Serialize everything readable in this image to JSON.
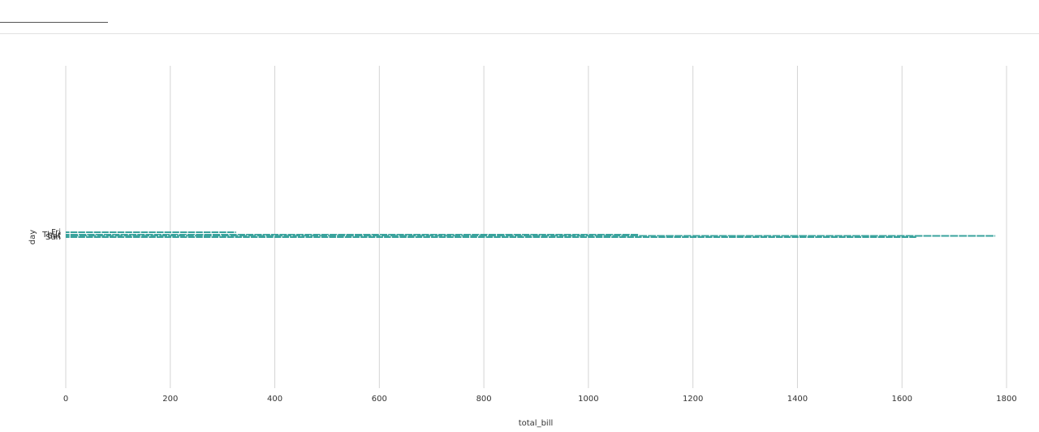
{
  "chart_data": {
    "type": "bar",
    "orientation": "horizontal",
    "stacked": true,
    "title": "",
    "xlabel": "total_bill",
    "ylabel": "day",
    "categories": [
      "Fri",
      "Thur",
      "Sat",
      "Sun"
    ],
    "xlim": [
      0,
      1800
    ],
    "xticks": [
      0,
      200,
      400,
      600,
      800,
      1000,
      1200,
      1400,
      1600,
      1800
    ],
    "totals": [
      325.88,
      1096.33,
      1778.4,
      1627.16
    ],
    "series_color": "#3aa39d",
    "grid": "vertical",
    "legend": "none"
  }
}
